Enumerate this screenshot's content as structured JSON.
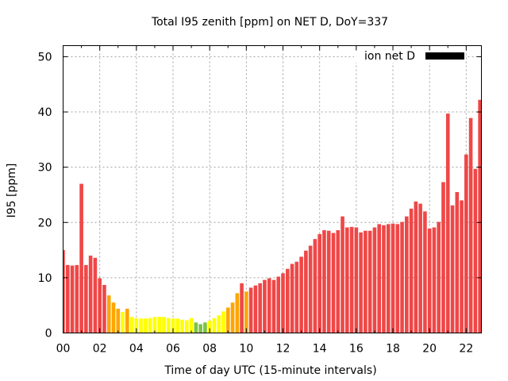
{
  "chart_data": {
    "type": "bar",
    "title": "Total I95 zenith [ppm] on NET D, DoY=337",
    "xlabel": "Time of day UTC (15-minute intervals)",
    "ylabel": "I95 [ppm]",
    "xlim": [
      0,
      22.83
    ],
    "ylim": [
      0,
      52
    ],
    "x_step_hours": 0.25,
    "x_ticks": [
      "00",
      "02",
      "04",
      "06",
      "08",
      "10",
      "12",
      "14",
      "16",
      "18",
      "20",
      "22"
    ],
    "x_tick_values": [
      0,
      2,
      4,
      6,
      8,
      10,
      12,
      14,
      16,
      18,
      20,
      22
    ],
    "y_ticks": [
      "0",
      "10",
      "20",
      "30",
      "40",
      "50"
    ],
    "y_tick_values": [
      0,
      10,
      20,
      30,
      40,
      50
    ],
    "grid": true,
    "legend": {
      "label": "ion net D",
      "placement": "top-right",
      "color": "#000000"
    },
    "color_scale": [
      {
        "max": 2,
        "color": "#7dc242"
      },
      {
        "max": 4,
        "color": "#ffff00"
      },
      {
        "max": 8,
        "color": "#ffa500"
      },
      {
        "max": 1000,
        "color": "#ef4747"
      }
    ],
    "series": [
      {
        "name": "ion net D",
        "values": [
          15.0,
          12.3,
          12.2,
          12.3,
          27.0,
          12.3,
          14.0,
          13.6,
          9.9,
          8.7,
          6.8,
          5.5,
          4.4,
          3.8,
          4.4,
          2.9,
          2.7,
          2.6,
          2.6,
          2.7,
          2.9,
          2.9,
          2.9,
          2.7,
          2.6,
          2.6,
          2.4,
          2.3,
          2.7,
          1.9,
          1.6,
          1.9,
          2.2,
          2.7,
          3.2,
          3.9,
          4.6,
          5.5,
          7.2,
          9.0,
          7.5,
          8.2,
          8.6,
          9.0,
          9.6,
          9.9,
          9.6,
          10.2,
          10.8,
          11.6,
          12.5,
          12.9,
          13.8,
          14.9,
          15.8,
          17.0,
          17.9,
          18.6,
          18.5,
          18.1,
          18.6,
          21.1,
          19.1,
          19.2,
          19.1,
          18.2,
          18.5,
          18.5,
          19.1,
          19.7,
          19.5,
          19.7,
          19.8,
          19.7,
          20.1,
          21.1,
          22.5,
          23.8,
          23.4,
          22.0,
          18.9,
          19.1,
          20.1,
          27.3,
          39.7,
          23.1,
          25.5,
          24.0,
          32.3,
          38.9,
          29.7,
          42.2
        ],
        "colors": [
          "red",
          "red",
          "red",
          "red",
          "red",
          "red",
          "red",
          "red",
          "red",
          "red",
          "orange",
          "orange",
          "orange",
          "yellow",
          "orange",
          "yellow",
          "yellow",
          "yellow",
          "yellow",
          "yellow",
          "yellow",
          "yellow",
          "yellow",
          "yellow",
          "yellow",
          "yellow",
          "yellow",
          "yellow",
          "yellow",
          "green",
          "green",
          "green",
          "yellow",
          "yellow",
          "yellow",
          "yellow",
          "orange",
          "orange",
          "orange",
          "red",
          "orange",
          "red",
          "red",
          "red",
          "red",
          "red",
          "red",
          "red",
          "red",
          "red",
          "red",
          "red",
          "red",
          "red",
          "red",
          "red",
          "red",
          "red",
          "red",
          "red",
          "red",
          "red",
          "red",
          "red",
          "red",
          "red",
          "red",
          "red",
          "red",
          "red",
          "red",
          "red",
          "red",
          "red",
          "red",
          "red",
          "red",
          "red",
          "red",
          "red",
          "red",
          "red",
          "red",
          "red",
          "red",
          "red",
          "red",
          "red",
          "red",
          "red",
          "red",
          "red"
        ]
      }
    ],
    "palette": {
      "red": "#ef4747",
      "orange": "#ffa500",
      "yellow": "#ffff00",
      "green": "#7dc242"
    }
  }
}
